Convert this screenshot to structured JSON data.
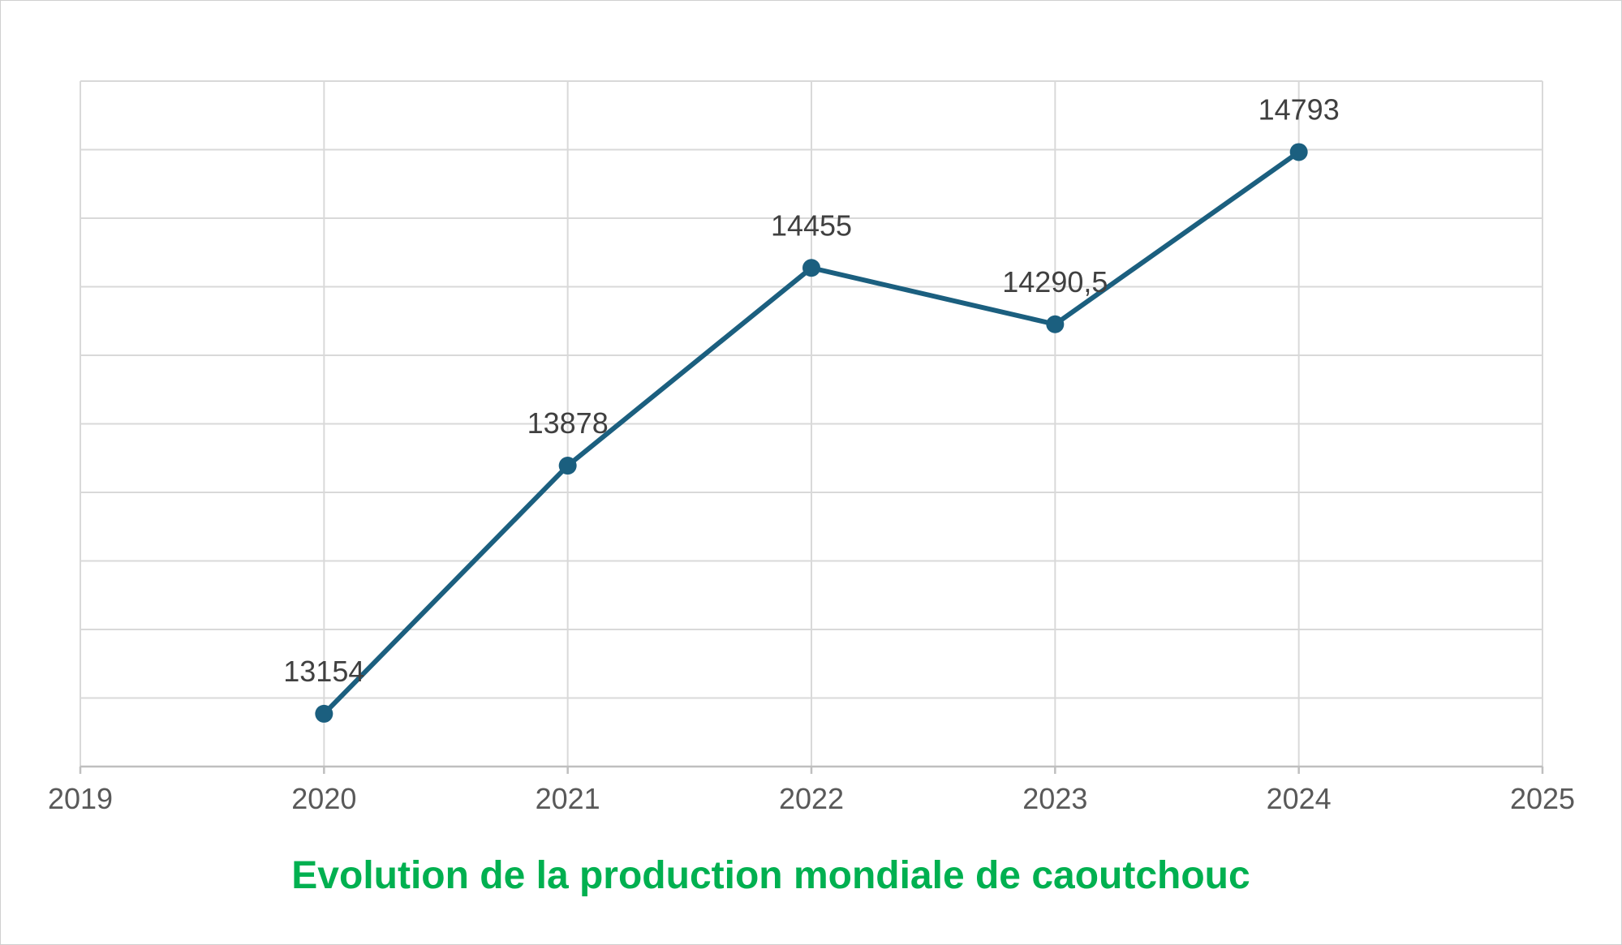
{
  "colors": {
    "series": "#1b5f7f",
    "grid": "#d9d9d9",
    "title": "#00b050"
  },
  "chart_data": {
    "type": "line",
    "title": "Evolution de la production mondiale de caoutchouc",
    "title_position": "bottom",
    "xlabel": "",
    "ylabel": "",
    "xlim": [
      2019,
      2025
    ],
    "xticks": [
      "2019",
      "2020",
      "2021",
      "2022",
      "2023",
      "2024",
      "2025"
    ],
    "ylim": [
      13000,
      15000
    ],
    "y_tick_labels_shown": false,
    "grid": true,
    "legend": "none",
    "series": [
      {
        "x": [
          2020,
          2021,
          2022,
          2023,
          2024
        ],
        "values": [
          13154,
          13878,
          14455,
          14290.5,
          14793
        ],
        "labels": [
          "13154",
          "13878",
          "14455",
          "14290,5",
          "14793"
        ]
      }
    ]
  }
}
